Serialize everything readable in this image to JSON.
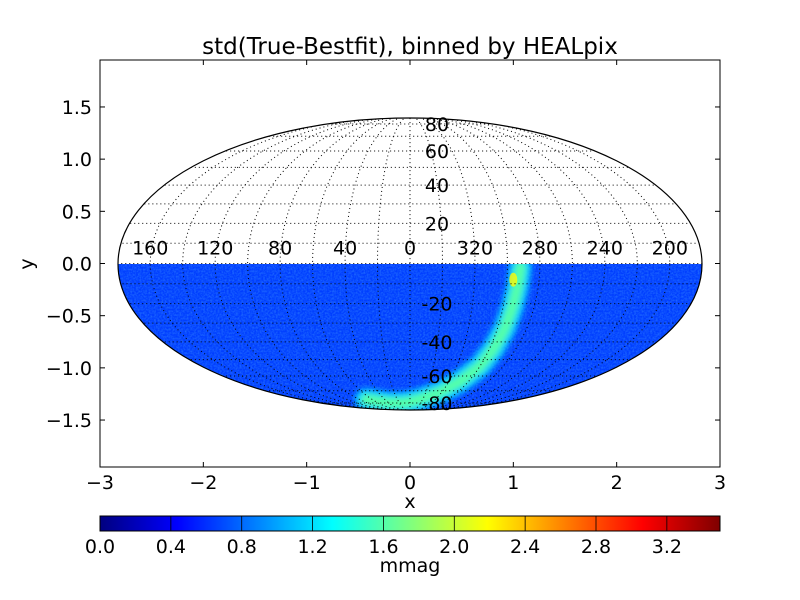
{
  "chart_data": {
    "type": "heatmap",
    "title": "std(True-Bestfit), binned by HEALpix",
    "projection": "mollweide",
    "xlabel": "x",
    "ylabel": "y",
    "xlim": [
      -3,
      3
    ],
    "ylim": [
      -1.95,
      1.95
    ],
    "xticks": [
      "−3",
      "−2",
      "−1",
      "0",
      "1",
      "2",
      "3"
    ],
    "xtick_values": [
      -3,
      -2,
      -1,
      0,
      1,
      2,
      3
    ],
    "yticks": [
      "1.5",
      "1.0",
      "0.5",
      "0.0",
      "−0.5",
      "−1.0",
      "−1.5"
    ],
    "ytick_values": [
      1.5,
      1.0,
      0.5,
      0.0,
      -0.5,
      -1.0,
      -1.5
    ],
    "grid": "dotted graticule",
    "meridian_labels": [
      "200",
      "240",
      "280",
      "320",
      "0",
      "40",
      "80",
      "120",
      "160"
    ],
    "meridian_label_values": [
      200,
      240,
      280,
      320,
      0,
      40,
      80,
      120,
      160
    ],
    "parallel_labels": [
      "80",
      "60",
      "40",
      "20",
      "-20",
      "-40",
      "-60",
      "-80"
    ],
    "parallel_label_values": [
      80,
      60,
      40,
      20,
      -20,
      -40,
      -60,
      -80
    ],
    "data_coverage": "southern hemisphere only (dec < 0)",
    "background_level": 0.65,
    "high_band_level": 1.6,
    "peak_level": 2.2,
    "colorbar": {
      "label": "mmag",
      "vmin": 0.0,
      "vmax": 3.5,
      "ticks": [
        "0.0",
        "0.4",
        "0.8",
        "1.2",
        "1.6",
        "2.0",
        "2.4",
        "2.8",
        "3.2"
      ],
      "tick_values": [
        0.0,
        0.4,
        0.8,
        1.2,
        1.6,
        2.0,
        2.4,
        2.8,
        3.2
      ],
      "colormap": "jet",
      "colors": [
        "#00007f",
        "#0000ff",
        "#007fff",
        "#00ffff",
        "#7fff7f",
        "#ffff00",
        "#ff7f00",
        "#ff0000",
        "#7f0000"
      ]
    }
  }
}
